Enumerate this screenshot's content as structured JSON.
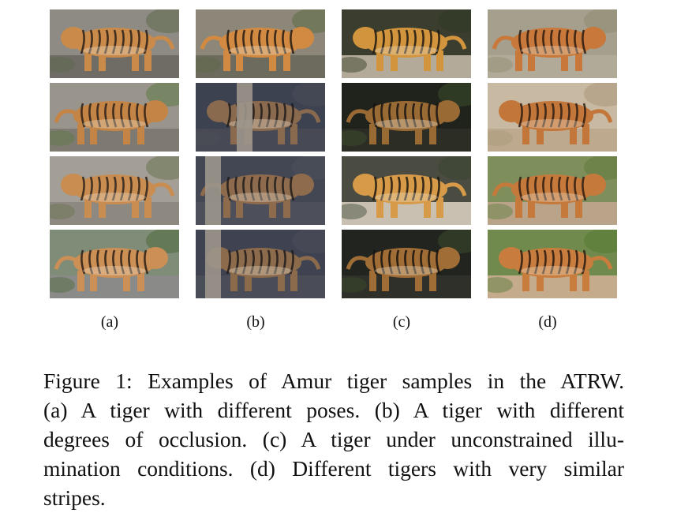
{
  "figure": {
    "columns": [
      {
        "id": "a",
        "label": "(a)",
        "photos": [
          {
            "bg": "#8e8a84",
            "ground": "#6f6c66",
            "tiger": "#c98a4a",
            "stripe": "#2a1f18",
            "foliage": "#5c6b4a"
          },
          {
            "bg": "#9a958c",
            "ground": "#7e7a72",
            "tiger": "#c48445",
            "stripe": "#2b2019",
            "foliage": "#5d7a45"
          },
          {
            "bg": "#a39e96",
            "ground": "#8d8880",
            "tiger": "#c98d52",
            "stripe": "#2d221a",
            "foliage": "#6b7552"
          },
          {
            "bg": "#7f8c78",
            "ground": "#8a8a88",
            "tiger": "#cc8f55",
            "stripe": "#2a1f18",
            "foliage": "#4e6a3b"
          }
        ]
      },
      {
        "id": "b",
        "label": "(b)",
        "photos": [
          {
            "bg": "#8c8778",
            "ground": "#6d6a5e",
            "tiger": "#d28a42",
            "stripe": "#221a14",
            "foliage": "#5d6b45"
          },
          {
            "bg": "#3c4250",
            "ground": "#474a55",
            "tiger": "#8a6a4e",
            "stripe": "#1e1a1a",
            "foliage": "#4b4e57"
          },
          {
            "bg": "#434754",
            "ground": "#4d505b",
            "tiger": "#8e6b4d",
            "stripe": "#1f1b1b",
            "foliage": "#4d505a"
          },
          {
            "bg": "#3f4351",
            "ground": "#4a4d58",
            "tiger": "#8c6a4c",
            "stripe": "#1e1a1a",
            "foliage": "#4c4f59"
          }
        ]
      },
      {
        "id": "c",
        "label": "(c)",
        "photos": [
          {
            "bg": "#3b3d2e",
            "ground": "#b3aa99",
            "tiger": "#d2953d",
            "stripe": "#1c1710",
            "foliage": "#2f3a24"
          },
          {
            "bg": "#1f231c",
            "ground": "#2c2e26",
            "tiger": "#9a6a35",
            "stripe": "#141210",
            "foliage": "#3d4f2c"
          },
          {
            "bg": "#4a4c42",
            "ground": "#c9c0b2",
            "tiger": "#d69a48",
            "stripe": "#1b1610",
            "foliage": "#3a4630"
          },
          {
            "bg": "#22251f",
            "ground": "#2f302a",
            "tiger": "#a06d36",
            "stripe": "#15120f",
            "foliage": "#3b4b2a"
          }
        ]
      },
      {
        "id": "d",
        "label": "(d)",
        "photos": [
          {
            "bg": "#a59f8e",
            "ground": "#b2aa98",
            "tiger": "#c8783a",
            "stripe": "#2a1a10",
            "foliage": "#8f8a70"
          },
          {
            "bg": "#c8b9a2",
            "ground": "#bca98e",
            "tiger": "#c3763a",
            "stripe": "#2d1c12",
            "foliage": "#a99878"
          },
          {
            "bg": "#7f8f5c",
            "ground": "#b9a48a",
            "tiger": "#c57a3c",
            "stripe": "#2b1b11",
            "foliage": "#5e7a3c"
          },
          {
            "bg": "#6f8a4c",
            "ground": "#c3ab8c",
            "tiger": "#c87d3e",
            "stripe": "#2a1a10",
            "foliage": "#557a35"
          }
        ]
      }
    ]
  },
  "caption": {
    "lines": [
      "Figure 1: Examples of Amur tiger samples in the ATRW.",
      "(a) A tiger with different poses. (b) A tiger with different",
      "degrees of occlusion. (c) A tiger under unconstrained illu-",
      "mination conditions. (d) Different tigers with very similar",
      "stripes."
    ]
  }
}
